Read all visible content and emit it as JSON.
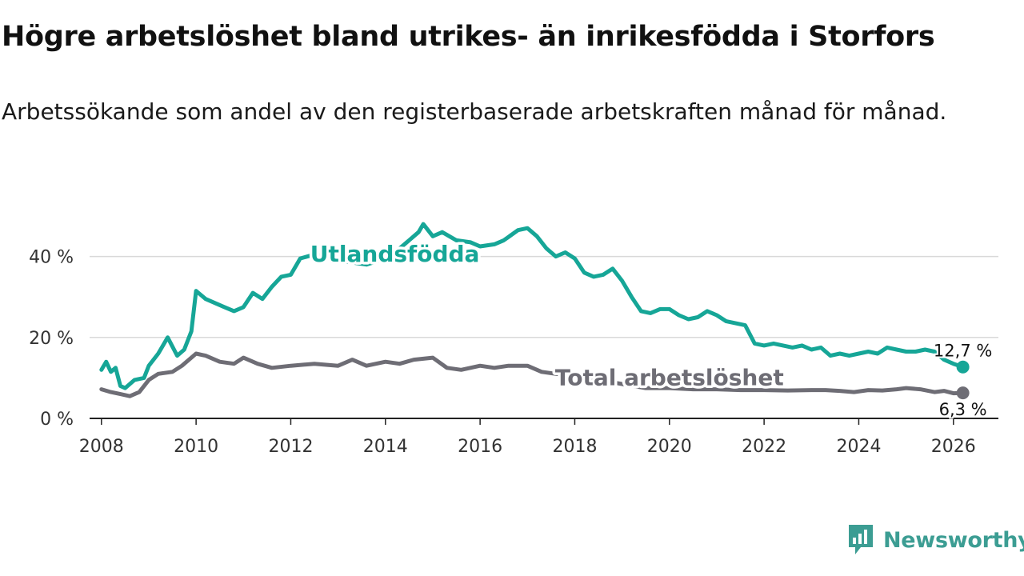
{
  "title": "Högre arbetslöshet bland utrikes- än inrikesfödda i Storfors",
  "subtitle": "Arbetssökande som andel av den registerbaserade arbetskraften månad för månad.",
  "logo": {
    "text": "Newsworthy",
    "icon": "bar-chart-icon"
  },
  "colors": {
    "foreign": "#16a697",
    "total": "#6e6d75",
    "grid": "#d9d9d9",
    "axis": "#222222",
    "logo": "#3c9d93"
  },
  "chart_data": {
    "type": "line",
    "title": "Högre arbetslöshet bland utrikes- än inrikesfödda i Storfors",
    "subtitle": "Arbetssökande som andel av den registerbaserade arbetskraften månad för månad.",
    "xlabel": "",
    "ylabel": "",
    "xlim": [
      2007.75,
      2026.95
    ],
    "ylim": [
      0,
      50
    ],
    "x_ticks": [
      2008,
      2010,
      2012,
      2014,
      2016,
      2018,
      2020,
      2022,
      2024,
      2026
    ],
    "x_tick_labels": [
      "2008",
      "2010",
      "2012",
      "2014",
      "2016",
      "2018",
      "2020",
      "2022",
      "2024",
      "2026"
    ],
    "y_ticks": [
      0,
      20,
      40
    ],
    "y_tick_labels": [
      "0 %",
      "20 %",
      "40 %"
    ],
    "grid": true,
    "series": [
      {
        "name": "Utlandsfödda",
        "color": "#16a697",
        "end_label": "12,7 %",
        "x": [
          2008.0,
          2008.1,
          2008.2,
          2008.3,
          2008.4,
          2008.5,
          2008.7,
          2008.9,
          2009.0,
          2009.2,
          2009.4,
          2009.6,
          2009.75,
          2009.9,
          2010.0,
          2010.2,
          2010.4,
          2010.6,
          2010.8,
          2011.0,
          2011.2,
          2011.4,
          2011.6,
          2011.8,
          2012.0,
          2012.2,
          2012.5,
          2012.8,
          2013.0,
          2013.3,
          2013.6,
          2014.0,
          2014.3,
          2014.5,
          2014.7,
          2014.8,
          2015.0,
          2015.2,
          2015.5,
          2015.8,
          2016.0,
          2016.3,
          2016.5,
          2016.8,
          2017.0,
          2017.2,
          2017.4,
          2017.6,
          2017.8,
          2018.0,
          2018.2,
          2018.4,
          2018.6,
          2018.8,
          2019.0,
          2019.2,
          2019.4,
          2019.6,
          2019.8,
          2020.0,
          2020.2,
          2020.4,
          2020.6,
          2020.8,
          2021.0,
          2021.2,
          2021.4,
          2021.6,
          2021.8,
          2022.0,
          2022.2,
          2022.4,
          2022.6,
          2022.8,
          2023.0,
          2023.2,
          2023.4,
          2023.6,
          2023.8,
          2024.0,
          2024.2,
          2024.4,
          2024.6,
          2024.8,
          2025.0,
          2025.2,
          2025.4,
          2025.6,
          2025.8,
          2026.0,
          2026.2
        ],
        "values": [
          12.0,
          14.0,
          11.5,
          12.5,
          8.0,
          7.5,
          9.5,
          10.0,
          13.0,
          16.0,
          20.0,
          15.5,
          17.0,
          21.5,
          31.5,
          29.5,
          28.5,
          27.5,
          26.5,
          27.5,
          31.0,
          29.5,
          32.5,
          35.0,
          35.5,
          39.5,
          40.5,
          40.0,
          39.0,
          38.5,
          38.0,
          39.5,
          42.0,
          44.0,
          46.0,
          48.0,
          45.0,
          46.0,
          44.0,
          43.5,
          42.5,
          43.0,
          44.0,
          46.5,
          47.0,
          45.0,
          42.0,
          40.0,
          41.0,
          39.5,
          36.0,
          35.0,
          35.5,
          37.0,
          34.0,
          30.0,
          26.5,
          26.0,
          27.0,
          27.0,
          25.5,
          24.5,
          25.0,
          26.5,
          25.5,
          24.0,
          23.5,
          23.0,
          18.5,
          18.0,
          18.5,
          18.0,
          17.5,
          18.0,
          17.0,
          17.5,
          15.5,
          16.0,
          15.5,
          16.0,
          16.5,
          16.0,
          17.5,
          17.0,
          16.5,
          16.5,
          17.0,
          16.5,
          14.5,
          13.5,
          12.7
        ]
      },
      {
        "name": "Total arbetslöshet",
        "color": "#6e6d75",
        "end_label": "6,3 %",
        "x": [
          2008.0,
          2008.2,
          2008.4,
          2008.6,
          2008.8,
          2009.0,
          2009.2,
          2009.5,
          2009.7,
          2010.0,
          2010.2,
          2010.5,
          2010.8,
          2011.0,
          2011.3,
          2011.6,
          2012.0,
          2012.5,
          2013.0,
          2013.3,
          2013.6,
          2014.0,
          2014.3,
          2014.6,
          2015.0,
          2015.3,
          2015.6,
          2016.0,
          2016.3,
          2016.6,
          2017.0,
          2017.3,
          2017.6,
          2018.0,
          2018.5,
          2019.0,
          2019.5,
          2020.0,
          2020.5,
          2021.0,
          2021.5,
          2022.0,
          2022.5,
          2023.0,
          2023.3,
          2023.6,
          2023.9,
          2024.2,
          2024.5,
          2024.8,
          2025.0,
          2025.3,
          2025.6,
          2025.8,
          2026.0,
          2026.2
        ],
        "values": [
          7.2,
          6.5,
          6.0,
          5.5,
          6.5,
          9.5,
          11.0,
          11.5,
          13.0,
          16.0,
          15.5,
          14.0,
          13.5,
          15.0,
          13.5,
          12.5,
          13.0,
          13.5,
          13.0,
          14.5,
          13.0,
          14.0,
          13.5,
          14.5,
          15.0,
          12.5,
          12.0,
          13.0,
          12.5,
          13.0,
          13.0,
          11.5,
          11.0,
          10.5,
          9.5,
          8.5,
          7.5,
          7.5,
          7.2,
          7.2,
          7.0,
          7.0,
          6.9,
          7.0,
          7.0,
          6.8,
          6.5,
          7.0,
          6.9,
          7.2,
          7.5,
          7.2,
          6.5,
          6.8,
          6.2,
          6.3
        ]
      }
    ],
    "annotations": [
      {
        "text": "Utlandsfödda",
        "series": "Utlandsfödda",
        "x": 2014.2,
        "y": 40.5
      },
      {
        "text": "Total arbetslöshet",
        "series": "Total arbetslöshet",
        "x": 2020.0,
        "y": 10.0
      }
    ]
  }
}
